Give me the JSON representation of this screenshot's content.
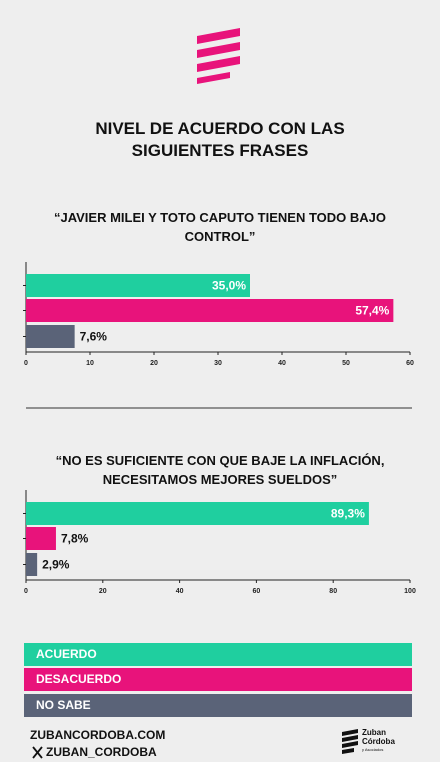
{
  "title": "NIVEL DE ACUERDO CON LAS SIGUIENTES FRASES",
  "legend": [
    {
      "name": "ACUERDO",
      "color": "#1fcf9f"
    },
    {
      "name": "DESACUERDO",
      "color": "#e8137b"
    },
    {
      "name": "NO SABE",
      "color": "#5a6378"
    }
  ],
  "chart_data": [
    {
      "type": "bar",
      "orientation": "horizontal",
      "title": "“JAVIER MILEI Y TOTO CAPUTO TIENEN TODO BAJO CONTROL”",
      "values": [
        35.0,
        57.4,
        7.6
      ],
      "value_labels": [
        "35,0%",
        "57,4%",
        "7,6%"
      ],
      "xlim": [
        0,
        60
      ],
      "xticks": [
        0,
        10,
        20,
        30,
        40,
        50,
        60
      ]
    },
    {
      "type": "bar",
      "orientation": "horizontal",
      "title": "“NO ES SUFICIENTE CON QUE BAJE LA INFLACIÓN, NECESITAMOS MEJORES SUELDOS”",
      "values": [
        89.3,
        7.8,
        2.9
      ],
      "value_labels": [
        "89,3%",
        "7,8%",
        "2,9%"
      ],
      "xlim": [
        0,
        100
      ],
      "xticks": [
        0,
        20,
        40,
        60,
        80,
        100
      ]
    }
  ],
  "footer": {
    "website": "ZUBANCORDOBA.COM",
    "handle": "ZUBAN_CORDOBA",
    "brand": [
      "Zuban",
      "Córdoba",
      "y Asociados"
    ]
  }
}
